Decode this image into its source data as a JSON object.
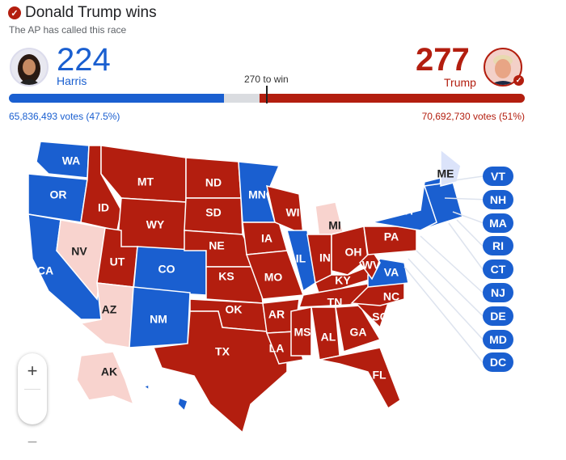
{
  "header": {
    "title": "Donald Trump wins",
    "subtitle": "The AP has called this race",
    "check_icon": "check-circle-icon"
  },
  "harris": {
    "name": "Harris",
    "electoral_votes": "224",
    "votes_text": "65,836,493 votes (47.5%)",
    "color": "#1a5fd0"
  },
  "trump": {
    "name": "Trump",
    "electoral_votes": "277",
    "votes_text": "70,692,730 votes (51%)",
    "color": "#b31e0f"
  },
  "bar": {
    "threshold_label": "270 to win",
    "harris": 224,
    "trump": 277,
    "total": 538
  },
  "colors": {
    "dem": "#1a5fd0",
    "rep": "#b31e0f",
    "rep_lean": "#f8d3ce",
    "dem_lean": "#dbe3fa"
  },
  "states": {
    "WA": "dem",
    "OR": "dem",
    "CA": "dem",
    "NV": "rep_lean",
    "ID": "rep",
    "MT": "rep",
    "WY": "rep",
    "UT": "rep",
    "CO": "dem",
    "AZ": "rep_lean",
    "NM": "dem",
    "ND": "rep",
    "SD": "rep",
    "NE": "rep",
    "KS": "rep",
    "OK": "rep",
    "TX": "rep",
    "MN": "dem",
    "IA": "rep",
    "MO": "rep",
    "AR": "rep",
    "LA": "rep",
    "WI": "rep",
    "IL": "dem",
    "MI": "rep_lean",
    "IN": "rep",
    "OH": "rep",
    "KY": "rep",
    "TN": "rep",
    "MS": "rep",
    "AL": "rep",
    "GA": "rep",
    "FL": "rep",
    "SC": "rep",
    "NC": "rep",
    "VA": "dem",
    "WV": "rep",
    "PA": "rep",
    "NY": "dem",
    "NE_REGION": "dem",
    "ME": "dem_lean",
    "AK": "rep_lean",
    "HI": "dem"
  },
  "inset_states": [
    "VT",
    "NH",
    "MA",
    "RI",
    "CT",
    "NJ",
    "DE",
    "MD",
    "DC"
  ],
  "zoom": {
    "in": "+",
    "out": "−"
  }
}
